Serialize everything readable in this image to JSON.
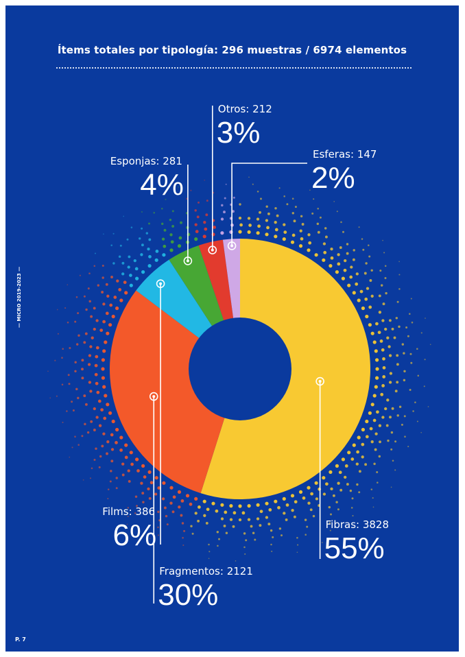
{
  "header": {
    "title": "Ítems totales por tipología: 296 muestras / 6974 elementos"
  },
  "sidebar": {
    "vertical_text": "— MICRO 2019-2023 —"
  },
  "footer": {
    "page_number": "P. 7"
  },
  "colors": {
    "background": "#0a3a9e",
    "fibras": "#f8c932",
    "fragmentos": "#f3592a",
    "films": "#22b8e4",
    "esponjas": "#47a734",
    "otros": "#e23b2e",
    "esferas": "#cfa8e6",
    "text": "#ffffff"
  },
  "chart_data": {
    "type": "pie",
    "donut": true,
    "title": "Ítems totales por tipología: 296 muestras / 6974 elementos",
    "slices": [
      {
        "label": "Fibras: 3828",
        "name": "Fibras",
        "value": 3828,
        "percent": "55%",
        "color": "#f8c932"
      },
      {
        "label": "Fragmentos: 2121",
        "name": "Fragmentos",
        "value": 2121,
        "percent": "30%",
        "color": "#f3592a"
      },
      {
        "label": "Films: 386",
        "name": "Films",
        "value": 386,
        "percent": "6%",
        "color": "#22b8e4"
      },
      {
        "label": "Esponjas: 281",
        "name": "Esponjas",
        "value": 281,
        "percent": "4%",
        "color": "#47a734"
      },
      {
        "label": "Otros: 212",
        "name": "Otros",
        "value": 212,
        "percent": "3%",
        "color": "#e23b2e"
      },
      {
        "label": "Esferas: 147",
        "name": "Esferas",
        "value": 147,
        "percent": "2%",
        "color": "#cfa8e6"
      }
    ],
    "total": 6974
  }
}
